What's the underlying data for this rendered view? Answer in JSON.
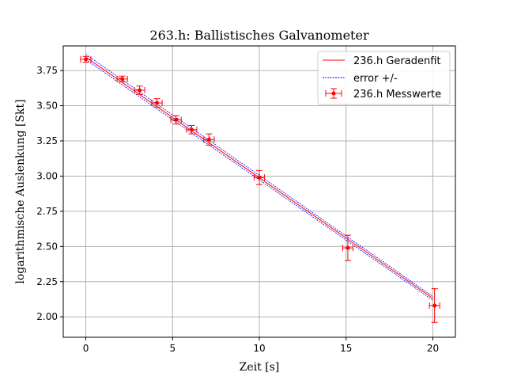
{
  "chart_data": {
    "type": "scatter",
    "title": "263.h: Ballistisches Galvanometer",
    "xlabel": "Zeit [s]",
    "ylabel": "logarithmische Auslenkung [Skt]",
    "xlim": [
      -1.3,
      21.3
    ],
    "ylim": [
      1.855,
      3.925
    ],
    "xticks": [
      0,
      5,
      10,
      15,
      20
    ],
    "xtick_labels": [
      "0",
      "5",
      "10",
      "15",
      "20"
    ],
    "yticks": [
      2.0,
      2.25,
      2.5,
      2.75,
      3.0,
      3.25,
      3.5,
      3.75
    ],
    "ytick_labels": [
      "2.00",
      "2.25",
      "2.50",
      "2.75",
      "3.00",
      "3.25",
      "3.50",
      "3.75"
    ],
    "grid": true,
    "legend_position": "top-right",
    "series": [
      {
        "name": "236.h Geradenfit",
        "kind": "line",
        "color": "#ff0000",
        "x": [
          0,
          20
        ],
        "y": [
          3.845,
          2.132
        ]
      },
      {
        "name": "error +/-",
        "kind": "dashed-line",
        "color": "#0000ff",
        "lines": [
          {
            "x": [
              0,
              20
            ],
            "y": [
              3.865,
              2.145
            ]
          },
          {
            "x": [
              0,
              20
            ],
            "y": [
              3.828,
              2.118
            ]
          }
        ]
      },
      {
        "name": "236.h Messwerte",
        "kind": "errorbar",
        "color": "#ff0000",
        "x": [
          0,
          2.1,
          3.1,
          4.1,
          5.2,
          6.1,
          7.1,
          10.0,
          15.1,
          20.1
        ],
        "y": [
          3.83,
          3.69,
          3.61,
          3.52,
          3.4,
          3.33,
          3.26,
          2.99,
          2.49,
          2.08
        ],
        "xerr": [
          0.3,
          0.3,
          0.3,
          0.3,
          0.3,
          0.3,
          0.3,
          0.3,
          0.3,
          0.3
        ],
        "yerr": [
          0.02,
          0.02,
          0.03,
          0.03,
          0.03,
          0.03,
          0.04,
          0.05,
          0.09,
          0.12
        ]
      }
    ]
  }
}
